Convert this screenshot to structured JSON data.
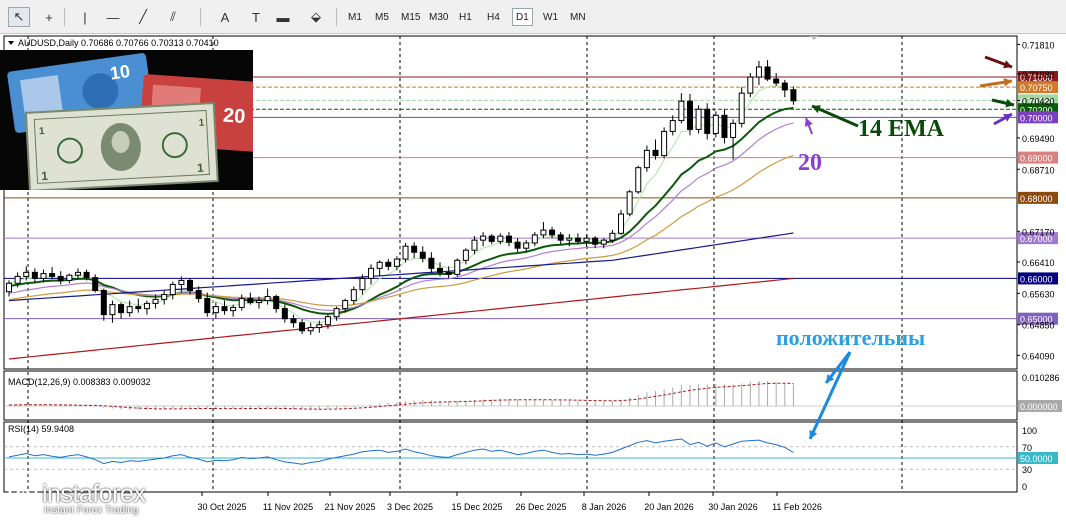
{
  "toolbar": {
    "tools": [
      {
        "name": "cursor-icon",
        "glyph": "↖"
      },
      {
        "name": "crosshair-icon",
        "glyph": "+"
      },
      {
        "name": "vertical-line-icon",
        "glyph": "|"
      },
      {
        "name": "horizontal-line-icon",
        "glyph": "—"
      },
      {
        "name": "trendline-icon",
        "glyph": "╱"
      },
      {
        "name": "fibonacci-icon",
        "glyph": "⫽"
      },
      {
        "name": "text-icon",
        "glyph": "A"
      },
      {
        "name": "label-icon",
        "glyph": "T"
      },
      {
        "name": "rectangle-icon",
        "glyph": "▬"
      },
      {
        "name": "arrows-icon",
        "glyph": "⬙"
      }
    ],
    "timeframes": [
      "M1",
      "M5",
      "M15",
      "M30",
      "H1",
      "H4",
      "D1",
      "W1",
      "MN"
    ],
    "active_timeframe": "D1"
  },
  "header": {
    "text": "AUDUSD,Daily  0.70686 0.70766 0.70313 0.70410"
  },
  "chart_data": {
    "type": "candlestick",
    "symbol": "AUDUSD",
    "timeframe": "Daily",
    "ohlc_last": {
      "open": 0.70686,
      "high": 0.70766,
      "low": 0.70313,
      "close": 0.7041
    },
    "ylim": [
      0.6385,
      0.7192
    ],
    "price_ticks": [
      "0.71810",
      "0.71080",
      "0.70420",
      "0.69490",
      "0.68710",
      "0.67170",
      "0.66410",
      "0.65630",
      "0.64850",
      "0.64090"
    ],
    "level_labels": [
      {
        "text": "0.71000",
        "value": 0.71,
        "color": "#8b1a1a"
      },
      {
        "text": "0.70750",
        "value": 0.7075,
        "color": "#d07a2a"
      },
      {
        "text": "0.70420",
        "value": 0.7042,
        "color": "#a0d8a0"
      },
      {
        "text": "0.70200",
        "value": 0.702,
        "color": "#0a5a0a"
      },
      {
        "text": "0.70000",
        "value": 0.7,
        "color": "#7a3fbf"
      },
      {
        "text": "0.69000",
        "value": 0.69,
        "color": "#d98080"
      },
      {
        "text": "0.68000",
        "value": 0.68,
        "color": "#8b4a10"
      },
      {
        "text": "0.67000",
        "value": 0.67,
        "color": "#a07ad0"
      },
      {
        "text": "0.66000",
        "value": 0.66,
        "color": "#000080"
      },
      {
        "text": "0.65000",
        "value": 0.65,
        "color": "#8060c0"
      }
    ],
    "date_ticks": [
      "30 Oct 2025",
      "11 Nov 2025",
      "21 Nov 2025",
      "3 Dec 2025",
      "15 Dec 2025",
      "26 Dec 2025",
      "8 Jan 2026",
      "20 Jan 2026",
      "30 Jan 2026",
      "11 Feb 2026"
    ],
    "candles": [
      [
        0.6567,
        0.6595,
        0.6555,
        0.6588
      ],
      [
        0.6588,
        0.6615,
        0.6578,
        0.6605
      ],
      [
        0.6605,
        0.663,
        0.6595,
        0.6615
      ],
      [
        0.6615,
        0.6625,
        0.659,
        0.66
      ],
      [
        0.66,
        0.6622,
        0.659,
        0.6612
      ],
      [
        0.6612,
        0.6628,
        0.6598,
        0.6605
      ],
      [
        0.6605,
        0.6618,
        0.6585,
        0.6595
      ],
      [
        0.6595,
        0.6612,
        0.6588,
        0.6608
      ],
      [
        0.6608,
        0.6625,
        0.6598,
        0.6615
      ],
      [
        0.6615,
        0.6622,
        0.6595,
        0.6602
      ],
      [
        0.6602,
        0.661,
        0.6565,
        0.657
      ],
      [
        0.657,
        0.6575,
        0.6495,
        0.651
      ],
      [
        0.651,
        0.6545,
        0.649,
        0.6535
      ],
      [
        0.6535,
        0.654,
        0.65,
        0.6515
      ],
      [
        0.6515,
        0.6545,
        0.6505,
        0.653
      ],
      [
        0.653,
        0.655,
        0.6515,
        0.6525
      ],
      [
        0.6525,
        0.6545,
        0.651,
        0.6538
      ],
      [
        0.6538,
        0.656,
        0.6525,
        0.6548
      ],
      [
        0.6548,
        0.657,
        0.6535,
        0.656
      ],
      [
        0.656,
        0.6592,
        0.6548,
        0.6585
      ],
      [
        0.6585,
        0.6605,
        0.6565,
        0.6595
      ],
      [
        0.6595,
        0.66,
        0.656,
        0.657
      ],
      [
        0.657,
        0.658,
        0.654,
        0.655
      ],
      [
        0.655,
        0.6565,
        0.6505,
        0.6515
      ],
      [
        0.6515,
        0.654,
        0.65,
        0.653
      ],
      [
        0.653,
        0.6545,
        0.651,
        0.652
      ],
      [
        0.652,
        0.6535,
        0.6505,
        0.6528
      ],
      [
        0.6528,
        0.656,
        0.652,
        0.655
      ],
      [
        0.655,
        0.6565,
        0.6535,
        0.654
      ],
      [
        0.654,
        0.6555,
        0.6525,
        0.6545
      ],
      [
        0.6545,
        0.6575,
        0.6535,
        0.6555
      ],
      [
        0.6555,
        0.656,
        0.6515,
        0.6525
      ],
      [
        0.6525,
        0.6535,
        0.649,
        0.65
      ],
      [
        0.65,
        0.651,
        0.6478,
        0.649
      ],
      [
        0.649,
        0.65,
        0.6462,
        0.647
      ],
      [
        0.647,
        0.649,
        0.646,
        0.6478
      ],
      [
        0.6478,
        0.6495,
        0.6465,
        0.6485
      ],
      [
        0.6485,
        0.651,
        0.6475,
        0.6505
      ],
      [
        0.6505,
        0.653,
        0.6495,
        0.6525
      ],
      [
        0.6525,
        0.655,
        0.6515,
        0.6545
      ],
      [
        0.6545,
        0.658,
        0.6535,
        0.6572
      ],
      [
        0.6572,
        0.661,
        0.656,
        0.66
      ],
      [
        0.66,
        0.6635,
        0.6585,
        0.6625
      ],
      [
        0.6625,
        0.6645,
        0.6605,
        0.664
      ],
      [
        0.664,
        0.6648,
        0.662,
        0.663
      ],
      [
        0.663,
        0.6655,
        0.662,
        0.6648
      ],
      [
        0.6648,
        0.6688,
        0.664,
        0.668
      ],
      [
        0.668,
        0.669,
        0.665,
        0.6665
      ],
      [
        0.6665,
        0.668,
        0.664,
        0.665
      ],
      [
        0.665,
        0.6665,
        0.6615,
        0.6625
      ],
      [
        0.6625,
        0.664,
        0.6605,
        0.6615
      ],
      [
        0.6615,
        0.663,
        0.66,
        0.661
      ],
      [
        0.661,
        0.665,
        0.6605,
        0.6645
      ],
      [
        0.6645,
        0.6675,
        0.6635,
        0.667
      ],
      [
        0.667,
        0.6705,
        0.666,
        0.6695
      ],
      [
        0.6695,
        0.6715,
        0.668,
        0.6705
      ],
      [
        0.6705,
        0.671,
        0.6685,
        0.6692
      ],
      [
        0.6692,
        0.6712,
        0.6685,
        0.6705
      ],
      [
        0.6705,
        0.6715,
        0.668,
        0.669
      ],
      [
        0.669,
        0.67,
        0.6665,
        0.6675
      ],
      [
        0.6675,
        0.6695,
        0.6665,
        0.6688
      ],
      [
        0.6688,
        0.6715,
        0.668,
        0.6708
      ],
      [
        0.6708,
        0.674,
        0.67,
        0.672
      ],
      [
        0.672,
        0.6728,
        0.67,
        0.6708
      ],
      [
        0.6708,
        0.6715,
        0.6685,
        0.6695
      ],
      [
        0.6695,
        0.671,
        0.668,
        0.67
      ],
      [
        0.67,
        0.6712,
        0.6685,
        0.6692
      ],
      [
        0.6692,
        0.6708,
        0.6678,
        0.67
      ],
      [
        0.67,
        0.6705,
        0.6675,
        0.6685
      ],
      [
        0.6685,
        0.67,
        0.6675,
        0.6695
      ],
      [
        0.6695,
        0.672,
        0.6688,
        0.6712
      ],
      [
        0.6712,
        0.677,
        0.6708,
        0.676
      ],
      [
        0.676,
        0.682,
        0.6755,
        0.6815
      ],
      [
        0.6815,
        0.688,
        0.681,
        0.6875
      ],
      [
        0.6875,
        0.693,
        0.6865,
        0.6918
      ],
      [
        0.6918,
        0.6945,
        0.6895,
        0.6905
      ],
      [
        0.6905,
        0.6975,
        0.6898,
        0.6965
      ],
      [
        0.6965,
        0.7005,
        0.6955,
        0.6992
      ],
      [
        0.6992,
        0.706,
        0.6985,
        0.704
      ],
      [
        0.704,
        0.7058,
        0.6955,
        0.697
      ],
      [
        0.697,
        0.703,
        0.696,
        0.702
      ],
      [
        0.702,
        0.7035,
        0.6945,
        0.696
      ],
      [
        0.696,
        0.7015,
        0.695,
        0.7005
      ],
      [
        0.7005,
        0.702,
        0.6935,
        0.695
      ],
      [
        0.695,
        0.6995,
        0.6895,
        0.6985
      ],
      [
        0.6985,
        0.7075,
        0.6975,
        0.706
      ],
      [
        0.706,
        0.711,
        0.705,
        0.71
      ],
      [
        0.71,
        0.714,
        0.708,
        0.7125
      ],
      [
        0.7125,
        0.7142,
        0.709,
        0.7095
      ],
      [
        0.7095,
        0.711,
        0.7078,
        0.7085
      ],
      [
        0.7085,
        0.7093,
        0.705,
        0.7068
      ],
      [
        0.70686,
        0.70766,
        0.70313,
        0.7041
      ]
    ],
    "moving_averages": [
      {
        "period": 5,
        "color": "#b8e8b0"
      },
      {
        "period": 14,
        "color": "#0a5a0a"
      },
      {
        "period": 20,
        "color": "#b080d0"
      },
      {
        "period": 50,
        "color": "#d09a40"
      },
      {
        "period": 100,
        "color": "#1a1a8a"
      },
      {
        "period": 200,
        "color": "#b01818"
      }
    ],
    "annotations": {
      "ema14": "14 EMA",
      "ma20": "20",
      "positive": "положительны"
    },
    "macd": {
      "label": "MACD(12,26,9) 0.008383 0.009032",
      "ticks": [
        "0.010286",
        "0.000000"
      ]
    },
    "rsi": {
      "label": "RSI(14) 59.9408",
      "ticks": [
        "100",
        "70",
        "50.0000",
        "30",
        "0"
      ],
      "current": 59.9408
    }
  },
  "logo": {
    "name": "instaforex",
    "subtitle": "Instant Forex Trading"
  }
}
